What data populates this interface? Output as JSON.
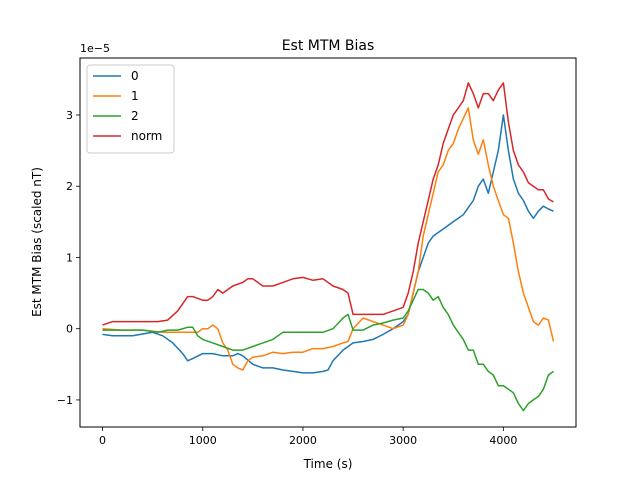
{
  "chart_data": {
    "type": "line",
    "title": "Est MTM Bias",
    "xlabel": "Time (s)",
    "ylabel": "Est MTM Bias (scaled nT)",
    "offset_text": "1e−5",
    "xlim": [
      -225,
      4725
    ],
    "ylim": [
      -1.38,
      3.8
    ],
    "xticks": [
      0,
      1000,
      2000,
      3000,
      4000
    ],
    "xtick_labels": [
      "0",
      "1000",
      "2000",
      "3000",
      "4000"
    ],
    "yticks": [
      -1,
      0,
      1,
      2,
      3
    ],
    "ytick_labels": [
      "−1",
      "0",
      "1",
      "2",
      "3"
    ],
    "grid": false,
    "legend_position": "upper left",
    "series": [
      {
        "name": "0",
        "color": "#1f77b4",
        "x": [
          0,
          100,
          300,
          500,
          600,
          700,
          800,
          850,
          900,
          1000,
          1100,
          1200,
          1300,
          1350,
          1400,
          1500,
          1600,
          1700,
          1800,
          1900,
          2000,
          2100,
          2200,
          2250,
          2300,
          2400,
          2500,
          2600,
          2700,
          2800,
          2900,
          3000,
          3050,
          3100,
          3150,
          3200,
          3250,
          3300,
          3350,
          3400,
          3450,
          3500,
          3550,
          3600,
          3650,
          3700,
          3750,
          3800,
          3850,
          3900,
          3950,
          4000,
          4050,
          4100,
          4150,
          4200,
          4250,
          4300,
          4350,
          4400,
          4450,
          4500
        ],
        "values": [
          -0.08,
          -0.1,
          -0.1,
          -0.05,
          -0.1,
          -0.2,
          -0.35,
          -0.45,
          -0.42,
          -0.35,
          -0.35,
          -0.38,
          -0.38,
          -0.35,
          -0.38,
          -0.5,
          -0.55,
          -0.55,
          -0.58,
          -0.6,
          -0.62,
          -0.62,
          -0.6,
          -0.58,
          -0.45,
          -0.3,
          -0.2,
          -0.18,
          -0.15,
          -0.08,
          0.0,
          0.1,
          0.2,
          0.5,
          0.8,
          1.0,
          1.2,
          1.3,
          1.35,
          1.4,
          1.45,
          1.5,
          1.55,
          1.6,
          1.7,
          1.8,
          2.0,
          2.1,
          1.9,
          2.2,
          2.5,
          3.0,
          2.5,
          2.1,
          1.9,
          1.8,
          1.65,
          1.55,
          1.65,
          1.72,
          1.68,
          1.65
        ]
      },
      {
        "name": "1",
        "color": "#ff7f0e",
        "x": [
          0,
          200,
          400,
          600,
          800,
          900,
          950,
          1000,
          1050,
          1100,
          1150,
          1200,
          1250,
          1300,
          1350,
          1400,
          1450,
          1500,
          1600,
          1700,
          1800,
          1900,
          2000,
          2100,
          2200,
          2300,
          2400,
          2450,
          2500,
          2600,
          2700,
          2800,
          2900,
          3000,
          3050,
          3100,
          3150,
          3200,
          3250,
          3300,
          3350,
          3400,
          3450,
          3500,
          3550,
          3600,
          3650,
          3700,
          3750,
          3800,
          3850,
          3900,
          3950,
          4000,
          4050,
          4100,
          4150,
          4200,
          4250,
          4300,
          4350,
          4400,
          4450,
          4500
        ],
        "values": [
          0.0,
          -0.02,
          -0.02,
          -0.05,
          -0.05,
          -0.05,
          -0.05,
          0.0,
          0.0,
          0.05,
          0.0,
          -0.2,
          -0.3,
          -0.5,
          -0.55,
          -0.58,
          -0.45,
          -0.4,
          -0.38,
          -0.33,
          -0.35,
          -0.33,
          -0.33,
          -0.28,
          -0.28,
          -0.25,
          -0.2,
          -0.18,
          0.0,
          0.15,
          0.1,
          0.05,
          0.0,
          0.05,
          0.2,
          0.5,
          0.8,
          1.3,
          1.6,
          1.9,
          2.2,
          2.3,
          2.5,
          2.6,
          2.8,
          2.95,
          3.1,
          2.65,
          2.45,
          2.65,
          2.3,
          2.0,
          1.8,
          1.6,
          1.55,
          1.2,
          0.8,
          0.5,
          0.3,
          0.1,
          0.05,
          0.15,
          0.12,
          -0.18
        ]
      },
      {
        "name": "2",
        "color": "#2ca02c",
        "x": [
          0,
          200,
          400,
          550,
          650,
          750,
          850,
          900,
          950,
          1000,
          1100,
          1200,
          1300,
          1400,
          1500,
          1600,
          1700,
          1800,
          1900,
          2000,
          2100,
          2200,
          2300,
          2400,
          2450,
          2500,
          2600,
          2700,
          2800,
          2900,
          3000,
          3050,
          3100,
          3150,
          3200,
          3250,
          3300,
          3350,
          3400,
          3450,
          3500,
          3550,
          3600,
          3650,
          3700,
          3750,
          3800,
          3850,
          3900,
          3950,
          4000,
          4050,
          4100,
          4150,
          4200,
          4250,
          4300,
          4350,
          4400,
          4450,
          4500
        ],
        "values": [
          -0.02,
          -0.02,
          -0.02,
          -0.05,
          -0.02,
          -0.02,
          0.02,
          0.02,
          -0.1,
          -0.15,
          -0.2,
          -0.25,
          -0.3,
          -0.3,
          -0.25,
          -0.2,
          -0.15,
          -0.05,
          -0.05,
          -0.05,
          -0.05,
          -0.05,
          0.0,
          0.15,
          0.2,
          -0.02,
          -0.02,
          0.05,
          0.08,
          0.12,
          0.15,
          0.25,
          0.4,
          0.55,
          0.55,
          0.5,
          0.4,
          0.45,
          0.3,
          0.2,
          0.05,
          -0.05,
          -0.15,
          -0.3,
          -0.3,
          -0.5,
          -0.5,
          -0.6,
          -0.65,
          -0.8,
          -0.8,
          -0.85,
          -0.9,
          -1.05,
          -1.15,
          -1.05,
          -1.0,
          -0.95,
          -0.85,
          -0.65,
          -0.6
        ]
      },
      {
        "name": "norm",
        "color": "#d62728",
        "x": [
          0,
          100,
          300,
          450,
          550,
          650,
          750,
          850,
          900,
          1000,
          1050,
          1100,
          1150,
          1200,
          1300,
          1400,
          1450,
          1500,
          1600,
          1700,
          1800,
          1900,
          2000,
          2100,
          2200,
          2300,
          2400,
          2450,
          2500,
          2600,
          2700,
          2800,
          2900,
          3000,
          3050,
          3100,
          3150,
          3200,
          3250,
          3300,
          3350,
          3400,
          3450,
          3500,
          3550,
          3600,
          3650,
          3700,
          3750,
          3800,
          3850,
          3900,
          3950,
          4000,
          4050,
          4100,
          4150,
          4200,
          4250,
          4300,
          4350,
          4400,
          4450,
          4500
        ],
        "values": [
          0.05,
          0.1,
          0.1,
          0.1,
          0.1,
          0.12,
          0.25,
          0.45,
          0.45,
          0.4,
          0.4,
          0.45,
          0.55,
          0.5,
          0.6,
          0.65,
          0.7,
          0.7,
          0.6,
          0.6,
          0.65,
          0.7,
          0.72,
          0.68,
          0.7,
          0.6,
          0.55,
          0.5,
          0.2,
          0.2,
          0.2,
          0.2,
          0.25,
          0.3,
          0.5,
          0.8,
          1.2,
          1.5,
          1.8,
          2.1,
          2.3,
          2.6,
          2.8,
          3.0,
          3.1,
          3.2,
          3.45,
          3.3,
          3.1,
          3.3,
          3.3,
          3.2,
          3.35,
          3.45,
          2.9,
          2.5,
          2.3,
          2.2,
          2.05,
          2.0,
          1.95,
          1.95,
          1.82,
          1.78
        ]
      }
    ]
  }
}
